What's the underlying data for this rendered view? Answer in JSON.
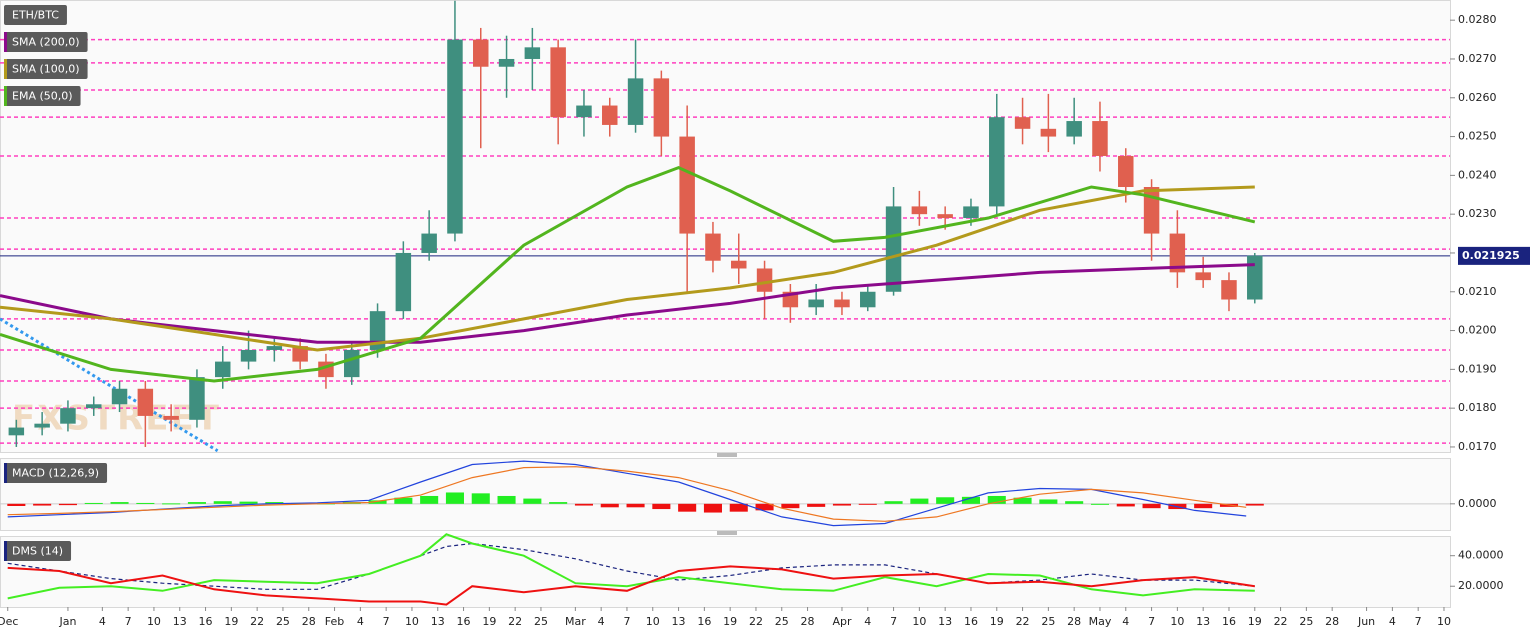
{
  "chart_data": [
    {
      "type": "candlestick",
      "title": "ETH/BTC",
      "watermark": "FXSTREET",
      "xlim": [
        -7.9,
        160.7
      ],
      "ylim": [
        0.01687,
        0.02852
      ],
      "yticks": [
        {
          "value": 0.017,
          "label": "0.0170"
        },
        {
          "value": 0.018,
          "label": "0.0180"
        },
        {
          "value": 0.019,
          "label": "0.0190"
        },
        {
          "value": 0.02,
          "label": "0.0200"
        },
        {
          "value": 0.021,
          "label": "0.0210"
        },
        {
          "value": 0.022,
          "label": "0.0220"
        },
        {
          "value": 0.023,
          "label": "0.0230"
        },
        {
          "value": 0.024,
          "label": "0.0240"
        },
        {
          "value": 0.025,
          "label": "0.0250"
        },
        {
          "value": 0.026,
          "label": "0.0260"
        },
        {
          "value": 0.027,
          "label": "0.0270"
        },
        {
          "value": 0.028,
          "label": "0.0280"
        }
      ],
      "up_color": "#3f8f7f",
      "down_color": "#e0604f",
      "x": [
        -6,
        -3,
        0,
        3,
        6,
        9,
        12,
        15,
        18,
        21,
        24,
        27,
        30,
        33,
        36,
        39,
        42,
        45,
        48,
        51,
        54,
        57,
        60,
        63,
        66,
        69,
        72,
        75,
        78,
        81,
        84,
        87,
        90,
        93,
        96,
        99,
        102,
        105,
        108,
        111,
        114,
        117,
        120,
        123,
        126,
        129,
        132,
        135,
        138
      ],
      "open": [
        0.0173,
        0.0175,
        0.0176,
        0.018,
        0.0181,
        0.0185,
        0.0178,
        0.0177,
        0.0188,
        0.0192,
        0.0195,
        0.0196,
        0.0192,
        0.0188,
        0.0195,
        0.0205,
        0.022,
        0.0225,
        0.0275,
        0.0268,
        0.027,
        0.0273,
        0.0255,
        0.0258,
        0.0253,
        0.0265,
        0.025,
        0.0225,
        0.0218,
        0.0216,
        0.021,
        0.0206,
        0.0208,
        0.0206,
        0.021,
        0.0232,
        0.023,
        0.0229,
        0.0232,
        0.0255,
        0.0252,
        0.025,
        0.0254,
        0.0245,
        0.0237,
        0.0225,
        0.0215,
        0.0213,
        0.0208
      ],
      "high": [
        0.0177,
        0.0179,
        0.0182,
        0.0183,
        0.0187,
        0.0187,
        0.0181,
        0.019,
        0.0196,
        0.02,
        0.0198,
        0.0198,
        0.0194,
        0.0197,
        0.0207,
        0.0223,
        0.0231,
        0.0285,
        0.0278,
        0.0276,
        0.0278,
        0.0275,
        0.0262,
        0.026,
        0.0275,
        0.0267,
        0.0258,
        0.0228,
        0.0225,
        0.0218,
        0.0212,
        0.0212,
        0.021,
        0.0212,
        0.0237,
        0.0236,
        0.0232,
        0.0234,
        0.0261,
        0.026,
        0.0261,
        0.026,
        0.0259,
        0.0247,
        0.0239,
        0.0231,
        0.0219,
        0.0215,
        0.022
      ],
      "low": [
        0.017,
        0.0173,
        0.0174,
        0.0178,
        0.0179,
        0.017,
        0.0174,
        0.0175,
        0.0185,
        0.019,
        0.0192,
        0.019,
        0.0185,
        0.0186,
        0.0193,
        0.0203,
        0.0218,
        0.0223,
        0.0247,
        0.026,
        0.0262,
        0.0248,
        0.025,
        0.025,
        0.0251,
        0.0245,
        0.021,
        0.0215,
        0.0212,
        0.0203,
        0.0202,
        0.0204,
        0.0204,
        0.0205,
        0.0209,
        0.0227,
        0.0226,
        0.0227,
        0.023,
        0.0248,
        0.0246,
        0.0248,
        0.0241,
        0.0233,
        0.0218,
        0.0211,
        0.0211,
        0.0205,
        0.0207
      ],
      "close": [
        0.0175,
        0.0176,
        0.018,
        0.0181,
        0.0185,
        0.0178,
        0.0177,
        0.0188,
        0.0192,
        0.0195,
        0.0196,
        0.0192,
        0.0188,
        0.0195,
        0.0205,
        0.022,
        0.0225,
        0.0275,
        0.0268,
        0.027,
        0.0273,
        0.0255,
        0.0258,
        0.0253,
        0.0265,
        0.025,
        0.0225,
        0.0218,
        0.0216,
        0.021,
        0.0206,
        0.0208,
        0.0206,
        0.021,
        0.0232,
        0.023,
        0.0229,
        0.0232,
        0.0255,
        0.0252,
        0.025,
        0.0254,
        0.0245,
        0.0237,
        0.0225,
        0.0215,
        0.0213,
        0.0208,
        0.02193
      ],
      "last_price": {
        "value": 0.021925,
        "label": "0.021925"
      },
      "levels": [
        0.0171,
        0.018,
        0.0187,
        0.0195,
        0.0203,
        0.0221,
        0.0229,
        0.0245,
        0.0255,
        0.0262,
        0.0269,
        0.0275
      ],
      "level_color": "#ff3fbf",
      "trendline": {
        "x": [
          -7.9,
          17.4
        ],
        "values": [
          0.0203,
          0.0169
        ],
        "color": "#3399ee"
      },
      "series": [
        {
          "name": "SMA (200,0)",
          "color": "#8b0a8b",
          "x": [
            -7.9,
            5,
            17,
            29,
            41,
            53,
            65,
            77,
            89,
            101,
            113,
            125,
            138
          ],
          "values": [
            0.0209,
            0.0203,
            0.02,
            0.0197,
            0.0197,
            0.02,
            0.0204,
            0.0207,
            0.0211,
            0.0213,
            0.0215,
            0.0216,
            0.0217
          ]
        },
        {
          "name": "SMA (100,0)",
          "color": "#b39a1c",
          "x": [
            -7.9,
            5,
            17,
            29,
            41,
            53,
            65,
            77,
            89,
            101,
            113,
            125,
            138
          ],
          "values": [
            0.0206,
            0.0203,
            0.0199,
            0.0195,
            0.0198,
            0.0203,
            0.0208,
            0.0211,
            0.0215,
            0.0222,
            0.0231,
            0.0236,
            0.0237
          ]
        },
        {
          "name": "EMA (50,0)",
          "color": "#52b51e",
          "x": [
            -7.9,
            5,
            17,
            29,
            41,
            53,
            65,
            71,
            77,
            89,
            95,
            107,
            119,
            125,
            138
          ],
          "values": [
            0.0199,
            0.019,
            0.0187,
            0.019,
            0.0198,
            0.0222,
            0.0237,
            0.0242,
            0.0236,
            0.0223,
            0.0224,
            0.0229,
            0.0237,
            0.0235,
            0.0228
          ]
        }
      ]
    },
    {
      "type": "macd",
      "title": "MACD (12,26,9)",
      "xlim": [
        -7.9,
        160.7
      ],
      "ylim": [
        -0.0006,
        0.00105
      ],
      "yticks": [
        {
          "value": 0,
          "label": "0.0000"
        }
      ],
      "x": [
        -6,
        -3,
        0,
        3,
        6,
        9,
        12,
        15,
        18,
        21,
        24,
        27,
        30,
        33,
        36,
        39,
        42,
        45,
        48,
        51,
        54,
        57,
        60,
        63,
        66,
        69,
        72,
        75,
        78,
        81,
        84,
        87,
        90,
        93,
        96,
        99,
        102,
        105,
        108,
        111,
        114,
        117,
        120,
        123,
        126,
        129,
        132,
        135,
        138
      ],
      "histogram": [
        -5e-05,
        -4e-05,
        -3e-05,
        2e-05,
        4e-05,
        2e-05,
        1e-05,
        4e-05,
        6e-05,
        5e-05,
        4e-05,
        2e-05,
        1e-05,
        4e-05,
        8e-05,
        0.00014,
        0.00018,
        0.00026,
        0.00024,
        0.00018,
        0.00012,
        4e-05,
        -4e-05,
        -8e-05,
        -8e-05,
        -0.00012,
        -0.00018,
        -0.0002,
        -0.00018,
        -0.00015,
        -0.0001,
        -7e-05,
        -4e-05,
        -1e-05,
        6e-05,
        0.00012,
        0.00015,
        0.00016,
        0.00018,
        0.00014,
        0.0001,
        6e-05,
        0,
        -6e-05,
        -0.0001,
        -0.00012,
        -0.0001,
        -7e-05,
        -4e-05
      ],
      "up_color": "#22ee22",
      "down_color": "#ee1111",
      "series": [
        {
          "color": "#2244dd",
          "x": [
            -7,
            -1,
            5,
            11,
            17,
            23,
            29,
            35,
            41,
            47,
            53,
            59,
            65,
            71,
            77,
            83,
            89,
            95,
            101,
            107,
            113,
            119,
            125,
            131,
            137
          ],
          "values": [
            -0.0003,
            -0.00025,
            -0.0002,
            -0.00012,
            -5e-05,
            0,
            2e-05,
            8e-05,
            0.0005,
            0.0009,
            0.00098,
            0.0009,
            0.0007,
            0.0005,
            0.0001,
            -0.0003,
            -0.0005,
            -0.00045,
            -0.0001,
            0.00025,
            0.00035,
            0.00033,
            0.0001,
            -0.00015,
            -0.00028
          ]
        },
        {
          "color": "#ee7722",
          "x": [
            -7,
            -1,
            5,
            11,
            17,
            23,
            29,
            35,
            41,
            47,
            53,
            59,
            65,
            71,
            77,
            83,
            89,
            95,
            101,
            107,
            113,
            119,
            125,
            131,
            137
          ],
          "values": [
            -0.00025,
            -0.00022,
            -0.00018,
            -0.00013,
            -8e-05,
            -3e-05,
            0,
            3e-05,
            0.0002,
            0.0006,
            0.00083,
            0.00085,
            0.00075,
            0.0006,
            0.0003,
            -0.0001,
            -0.00035,
            -0.0004,
            -0.0003,
            0,
            0.00022,
            0.00033,
            0.00025,
            8e-05,
            -8e-05
          ]
        }
      ]
    },
    {
      "type": "line",
      "title": "DMS (14)",
      "xlim": [
        -7.9,
        160.7
      ],
      "ylim": [
        6.4,
        52.9
      ],
      "yticks": [
        {
          "value": 40,
          "label": "40.0000"
        },
        {
          "value": 20,
          "label": "20.0000"
        }
      ],
      "xticks": [
        {
          "value": -7,
          "label": "Dec"
        },
        {
          "value": 0,
          "label": "Jan"
        },
        4,
        7,
        10,
        13,
        16,
        19,
        22,
        25,
        28,
        {
          "value": 31,
          "label": "Feb"
        },
        {
          "value": 34,
          "label": "4"
        },
        {
          "value": 37,
          "label": "7"
        },
        {
          "value": 40,
          "label": "10"
        },
        {
          "value": 43,
          "label": "13"
        },
        {
          "value": 46,
          "label": "16"
        },
        {
          "value": 49,
          "label": "19"
        },
        {
          "value": 52,
          "label": "22"
        },
        {
          "value": 55,
          "label": "25"
        },
        {
          "value": 59,
          "label": "Mar"
        },
        {
          "value": 62,
          "label": "4"
        },
        {
          "value": 65,
          "label": "7"
        },
        {
          "value": 68,
          "label": "10"
        },
        {
          "value": 71,
          "label": "13"
        },
        {
          "value": 74,
          "label": "16"
        },
        {
          "value": 77,
          "label": "19"
        },
        {
          "value": 80,
          "label": "22"
        },
        {
          "value": 83,
          "label": "25"
        },
        {
          "value": 86,
          "label": "28"
        },
        {
          "value": 90,
          "label": "Apr"
        },
        {
          "value": 93,
          "label": "4"
        },
        {
          "value": 96,
          "label": "7"
        },
        {
          "value": 99,
          "label": "10"
        },
        {
          "value": 102,
          "label": "13"
        },
        {
          "value": 105,
          "label": "16"
        },
        {
          "value": 108,
          "label": "19"
        },
        {
          "value": 111,
          "label": "22"
        },
        {
          "value": 114,
          "label": "25"
        },
        {
          "value": 117,
          "label": "28"
        },
        {
          "value": 120,
          "label": "May"
        },
        {
          "value": 123,
          "label": "4"
        },
        {
          "value": 126,
          "label": "7"
        },
        {
          "value": 129,
          "label": "10"
        },
        {
          "value": 132,
          "label": "13"
        },
        {
          "value": 135,
          "label": "16"
        },
        {
          "value": 138,
          "label": "19"
        },
        {
          "value": 141,
          "label": "22"
        },
        {
          "value": 144,
          "label": "25"
        },
        {
          "value": 147,
          "label": "28"
        },
        {
          "value": 151,
          "label": "Jun"
        },
        {
          "value": 154,
          "label": "4"
        },
        {
          "value": 157,
          "label": "7"
        },
        {
          "value": 160,
          "label": "10"
        }
      ],
      "series": [
        {
          "color": "#1a237e",
          "dash": true,
          "x": [
            -7,
            -1,
            5,
            11,
            17,
            23,
            29,
            35,
            41,
            44,
            47,
            53,
            59,
            65,
            71,
            77,
            83,
            89,
            95,
            101,
            107,
            113,
            119,
            125,
            131,
            138
          ],
          "values": [
            35,
            30,
            25,
            22,
            20,
            18,
            18,
            28,
            40,
            46,
            48,
            44,
            38,
            30,
            24,
            27,
            32,
            34,
            34,
            28,
            22,
            24,
            28,
            24,
            24,
            20
          ]
        },
        {
          "color": "#44ee22",
          "dash": false,
          "x": [
            -7,
            -1,
            5,
            11,
            17,
            23,
            29,
            35,
            41,
            44,
            47,
            53,
            59,
            65,
            71,
            77,
            83,
            89,
            95,
            101,
            107,
            113,
            119,
            125,
            131,
            138
          ],
          "values": [
            12,
            19,
            20,
            17,
            24,
            23,
            22,
            28,
            40,
            54,
            48,
            40,
            22,
            20,
            26,
            22,
            18,
            17,
            26,
            20,
            28,
            27,
            18,
            14,
            18,
            17
          ]
        },
        {
          "color": "#ee1111",
          "dash": false,
          "x": [
            -7,
            -1,
            5,
            11,
            17,
            23,
            29,
            35,
            41,
            44,
            47,
            53,
            59,
            65,
            71,
            77,
            83,
            89,
            95,
            101,
            107,
            113,
            119,
            125,
            131,
            138
          ],
          "values": [
            32,
            30,
            22,
            27,
            18,
            14,
            12,
            10,
            10,
            8,
            20,
            16,
            20,
            17,
            30,
            33,
            31,
            25,
            27,
            28,
            22,
            23,
            20,
            24,
            26,
            20
          ]
        }
      ]
    }
  ]
}
